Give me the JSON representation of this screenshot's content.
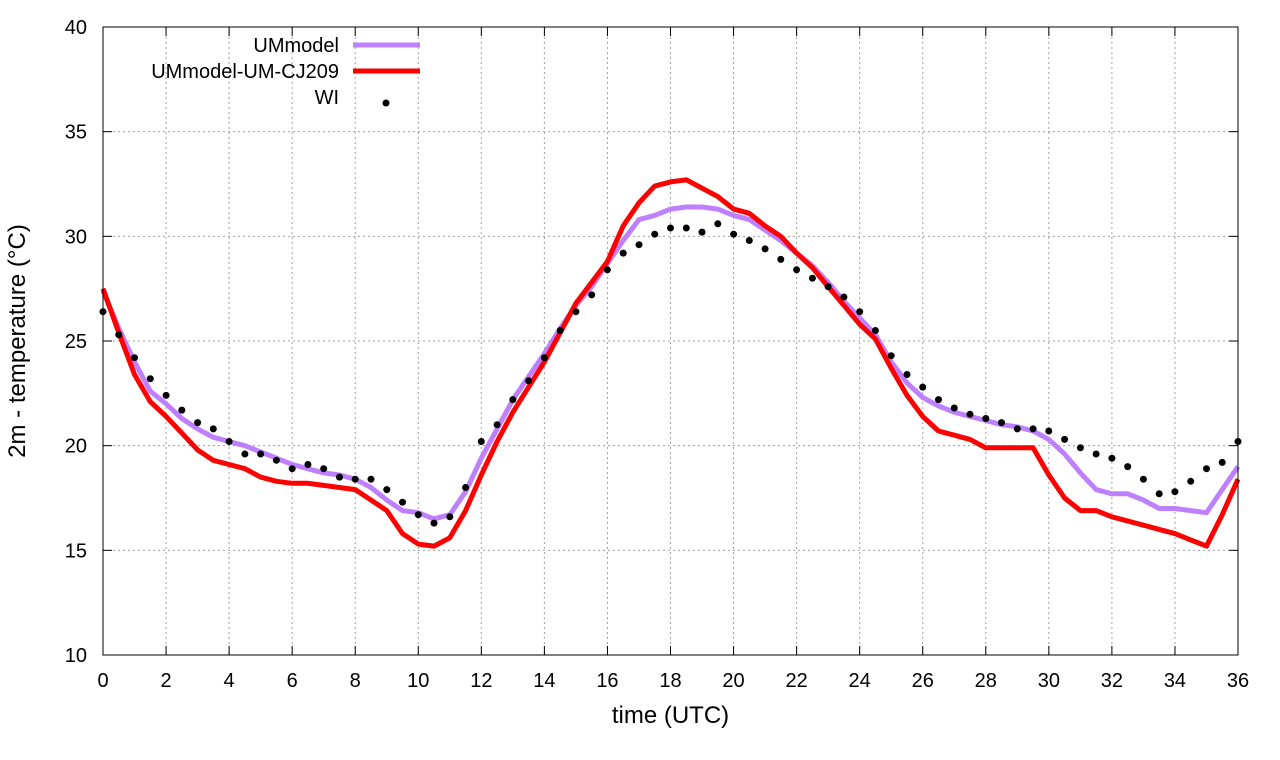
{
  "chart_data": {
    "type": "line",
    "title": "",
    "xlabel": "time (UTC)",
    "ylabel": "2m - temperature (°C)",
    "xlim": [
      0,
      36
    ],
    "ylim": [
      10,
      40
    ],
    "xticks": [
      0,
      2,
      4,
      6,
      8,
      10,
      12,
      14,
      16,
      18,
      20,
      22,
      24,
      26,
      28,
      30,
      32,
      34,
      36
    ],
    "yticks": [
      10,
      15,
      20,
      25,
      30,
      35,
      40
    ],
    "grid": true,
    "legend_position": "top-left",
    "series": [
      {
        "name": "UMmodel",
        "style": "line",
        "color": "#bf80ff",
        "x": [
          0,
          0.5,
          1,
          1.5,
          2,
          2.5,
          3,
          3.5,
          4,
          4.5,
          5,
          5.5,
          6,
          6.5,
          7,
          7.5,
          8,
          8.5,
          9,
          9.5,
          10,
          10.5,
          11,
          11.5,
          12,
          12.5,
          13,
          13.5,
          14,
          14.5,
          15,
          15.5,
          16,
          16.5,
          17,
          17.5,
          18,
          18.5,
          19,
          19.5,
          20,
          20.5,
          21,
          21.5,
          22,
          22.5,
          23,
          23.5,
          24,
          24.5,
          25,
          25.5,
          26,
          26.5,
          27,
          27.5,
          28,
          28.5,
          29,
          29.5,
          30,
          30.5,
          31,
          31.5,
          32,
          32.5,
          33,
          33.5,
          34,
          34.5,
          35,
          35.5,
          36
        ],
        "y": [
          27.4,
          25.6,
          24.0,
          22.6,
          22.0,
          21.3,
          20.8,
          20.4,
          20.2,
          20.0,
          19.7,
          19.4,
          19.1,
          18.9,
          18.7,
          18.6,
          18.4,
          18.0,
          17.4,
          16.9,
          16.8,
          16.5,
          16.7,
          17.8,
          19.4,
          20.8,
          22.2,
          23.3,
          24.4,
          25.6,
          26.7,
          27.6,
          28.7,
          29.8,
          30.8,
          31.0,
          31.3,
          31.4,
          31.4,
          31.3,
          31.0,
          30.8,
          30.3,
          29.8,
          29.2,
          28.6,
          27.8,
          26.9,
          26.1,
          25.3,
          24.0,
          23.0,
          22.3,
          21.9,
          21.6,
          21.4,
          21.2,
          21.0,
          20.9,
          20.7,
          20.3,
          19.6,
          18.7,
          17.9,
          17.7,
          17.7,
          17.4,
          17.0,
          17.0,
          16.9,
          16.8,
          17.9,
          19.0
        ]
      },
      {
        "name": "UMmodel-UM-CJ209",
        "style": "line",
        "color": "#ff0000",
        "x": [
          0,
          0.5,
          1,
          1.5,
          2,
          2.5,
          3,
          3.5,
          4,
          4.5,
          5,
          5.5,
          6,
          6.5,
          7,
          7.5,
          8,
          8.5,
          9,
          9.5,
          10,
          10.5,
          11,
          11.5,
          12,
          12.5,
          13,
          13.5,
          14,
          14.5,
          15,
          15.5,
          16,
          16.5,
          17,
          17.5,
          18,
          18.5,
          19,
          19.5,
          20,
          20.5,
          21,
          21.5,
          22,
          22.5,
          23,
          23.5,
          24,
          24.5,
          25,
          25.5,
          26,
          26.5,
          27,
          27.5,
          28,
          28.5,
          29,
          29.5,
          30,
          30.5,
          31,
          31.5,
          32,
          32.5,
          33,
          33.5,
          34,
          34.5,
          35,
          35.5,
          36
        ],
        "y": [
          27.5,
          25.4,
          23.4,
          22.1,
          21.4,
          20.6,
          19.8,
          19.3,
          19.1,
          18.9,
          18.5,
          18.3,
          18.2,
          18.2,
          18.1,
          18.0,
          17.9,
          17.4,
          16.9,
          15.8,
          15.3,
          15.2,
          15.6,
          16.9,
          18.6,
          20.2,
          21.6,
          22.8,
          24.0,
          25.4,
          26.8,
          27.8,
          28.8,
          30.5,
          31.6,
          32.4,
          32.6,
          32.7,
          32.3,
          31.9,
          31.3,
          31.1,
          30.5,
          30.0,
          29.2,
          28.5,
          27.6,
          26.7,
          25.8,
          25.1,
          23.7,
          22.4,
          21.4,
          20.7,
          20.5,
          20.3,
          19.9,
          19.9,
          19.9,
          19.9,
          18.6,
          17.5,
          16.9,
          16.9,
          16.6,
          16.4,
          16.2,
          16.0,
          15.8,
          15.5,
          15.2,
          16.7,
          18.4
        ]
      },
      {
        "name": "WI",
        "style": "points",
        "color": "#000000",
        "x": [
          0,
          0.5,
          1,
          1.5,
          2,
          2.5,
          3,
          3.5,
          4,
          4.5,
          5,
          5.5,
          6,
          6.5,
          7,
          7.5,
          8,
          8.5,
          9,
          9.5,
          10,
          10.5,
          11,
          11.5,
          12,
          12.5,
          13,
          13.5,
          14,
          14.5,
          15,
          15.5,
          16,
          16.5,
          17,
          17.5,
          18,
          18.5,
          19,
          19.5,
          20,
          20.5,
          21,
          21.5,
          22,
          22.5,
          23,
          23.5,
          24,
          24.5,
          25,
          25.5,
          26,
          26.5,
          27,
          27.5,
          28,
          28.5,
          29,
          29.5,
          30,
          30.5,
          31,
          31.5,
          32,
          32.5,
          33,
          33.5,
          34,
          34.5,
          35,
          35.5,
          36
        ],
        "y": [
          26.4,
          25.3,
          24.2,
          23.2,
          22.4,
          21.7,
          21.1,
          20.8,
          20.2,
          19.6,
          19.6,
          19.3,
          18.9,
          19.1,
          18.9,
          18.5,
          18.4,
          18.4,
          17.9,
          17.3,
          16.7,
          16.3,
          16.6,
          18.0,
          20.2,
          21.0,
          22.2,
          23.1,
          24.2,
          25.5,
          26.4,
          27.2,
          28.4,
          29.2,
          29.6,
          30.1,
          30.4,
          30.4,
          30.2,
          30.6,
          30.1,
          29.8,
          29.4,
          28.9,
          28.4,
          28.0,
          27.6,
          27.1,
          26.4,
          25.5,
          24.3,
          23.4,
          22.8,
          22.2,
          21.8,
          21.5,
          21.3,
          21.1,
          20.8,
          20.8,
          20.7,
          20.3,
          19.9,
          19.6,
          19.4,
          19.0,
          18.4,
          17.7,
          17.8,
          18.3,
          18.9,
          19.2,
          20.2
        ]
      }
    ]
  }
}
